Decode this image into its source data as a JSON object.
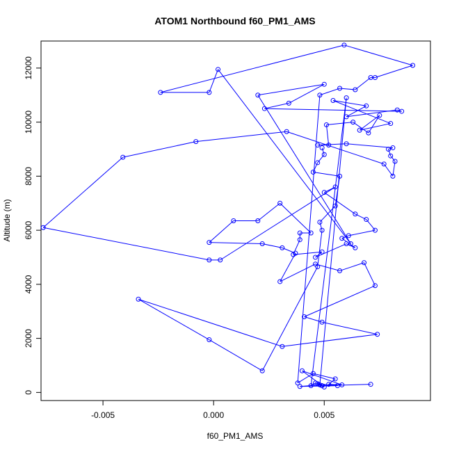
{
  "chart_data": {
    "type": "line",
    "title": "ATOM1 Northbound f60_PM1_AMS",
    "xlabel": "f60_PM1_AMS",
    "ylabel": "Altitude (m)",
    "xlim": [
      -0.0078,
      0.0098
    ],
    "ylim": [
      -300,
      13000
    ],
    "xticks": [
      -0.005,
      0.0,
      0.005
    ],
    "xtick_labels": [
      "-0.005",
      "0.000",
      "0.005"
    ],
    "yticks": [
      0,
      2000,
      4000,
      6000,
      8000,
      10000,
      12000
    ],
    "ytick_labels": [
      "0",
      "2000",
      "4000",
      "6000",
      "8000",
      "10000",
      "12000"
    ],
    "series_color": "#0000ff",
    "marker": "open-circle",
    "series": [
      {
        "name": "f60_PM1_AMS vs Altitude",
        "points": [
          [
            0.0071,
            300
          ],
          [
            0.0049,
            250
          ],
          [
            0.0046,
            350
          ],
          [
            0.0044,
            250
          ],
          [
            0.006,
            10900
          ],
          [
            0.0048,
            280
          ],
          [
            0.0039,
            220
          ],
          [
            0.0056,
            250
          ],
          [
            0.0047,
            320
          ],
          [
            0.005,
            200
          ],
          [
            0.004,
            800
          ],
          [
            0.0058,
            280
          ],
          [
            0.0052,
            300
          ],
          [
            0.0055,
            500
          ],
          [
            0.0045,
            700
          ],
          [
            0.0038,
            350
          ],
          [
            0.0048,
            11000
          ],
          [
            0.0057,
            11250
          ],
          [
            0.0064,
            11200
          ],
          [
            0.0071,
            11650
          ],
          [
            0.0073,
            11650
          ],
          [
            0.009,
            12100
          ],
          [
            0.0059,
            12850
          ],
          [
            -0.0024,
            11100
          ],
          [
            -0.0002,
            11100
          ],
          [
            0.0002,
            11950
          ],
          [
            0.0062,
            5500
          ],
          [
            0.002,
            11000
          ],
          [
            0.005,
            11400
          ],
          [
            0.0034,
            10700
          ],
          [
            0.0023,
            10500
          ],
          [
            0.0085,
            10400
          ],
          [
            0.0083,
            10450
          ],
          [
            0.006,
            10200
          ],
          [
            0.0069,
            10600
          ],
          [
            0.0054,
            10800
          ],
          [
            0.008,
            9950
          ],
          [
            0.0066,
            9700
          ],
          [
            0.0075,
            10250
          ],
          [
            0.007,
            9600
          ],
          [
            0.0063,
            10000
          ],
          [
            0.0051,
            9900
          ],
          [
            0.0052,
            9150
          ],
          [
            0.0047,
            9150
          ],
          [
            0.006,
            9200
          ],
          [
            0.0081,
            9050
          ],
          [
            0.0079,
            9000
          ],
          [
            0.008,
            8750
          ],
          [
            0.0082,
            8550
          ],
          [
            0.0081,
            8000
          ],
          [
            0.0077,
            8450
          ],
          [
            0.0033,
            9650
          ],
          [
            -0.0008,
            9280
          ],
          [
            -0.0041,
            8700
          ],
          [
            -0.0077,
            6100
          ],
          [
            -0.0002,
            4900
          ],
          [
            0.0003,
            4900
          ],
          [
            0.0055,
            7600
          ],
          [
            0.005,
            7400
          ],
          [
            0.0064,
            6600
          ],
          [
            0.0069,
            6400
          ],
          [
            0.0073,
            6000
          ],
          [
            0.0061,
            5800
          ],
          [
            0.0058,
            5700
          ],
          [
            0.0064,
            5350
          ],
          [
            0.006,
            5500
          ],
          [
            0.0046,
            5000
          ],
          [
            0.0049,
            5200
          ],
          [
            0.0036,
            5100
          ],
          [
            0.0039,
            5650
          ],
          [
            0.0039,
            5900
          ],
          [
            0.0044,
            5900
          ],
          [
            0.003,
            7000
          ],
          [
            0.002,
            6350
          ],
          [
            0.0009,
            6350
          ],
          [
            -0.0002,
            5550
          ],
          [
            0.0022,
            5500
          ],
          [
            0.0031,
            5350
          ],
          [
            0.0037,
            5150
          ],
          [
            0.003,
            4100
          ],
          [
            0.0046,
            4750
          ],
          [
            0.0057,
            4500
          ],
          [
            0.0068,
            4800
          ],
          [
            0.0073,
            3950
          ],
          [
            0.0041,
            2800
          ],
          [
            0.0049,
            2600
          ],
          [
            0.0074,
            2150
          ],
          [
            0.0031,
            1700
          ],
          [
            -0.0034,
            3450
          ],
          [
            -0.0002,
            1950
          ],
          [
            0.0022,
            800
          ],
          [
            0.0047,
            4650
          ],
          [
            0.0049,
            6000
          ],
          [
            0.0048,
            6300
          ],
          [
            0.0055,
            6900
          ],
          [
            0.0057,
            8000
          ],
          [
            0.0045,
            8150
          ],
          [
            0.0047,
            8500
          ],
          [
            0.005,
            8800
          ],
          [
            0.0049,
            9050
          ]
        ]
      }
    ]
  }
}
